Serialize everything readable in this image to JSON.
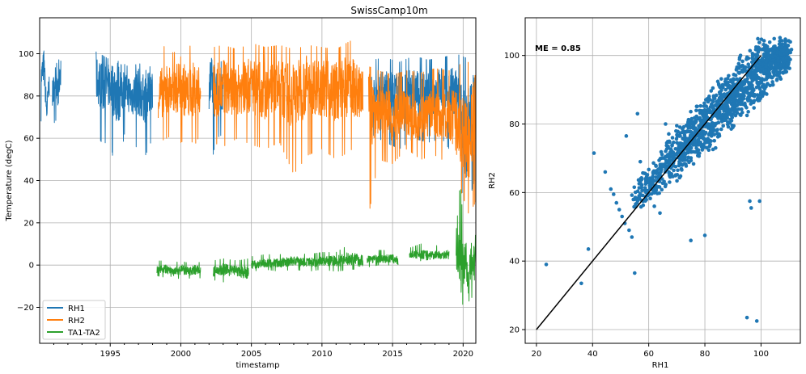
{
  "chart_data": [
    {
      "type": "line",
      "title": "SwissCamp10m",
      "xlabel": "timestamp",
      "ylabel": "Temperature (degC)",
      "xlim": [
        1990.0,
        2020.9
      ],
      "ylim": [
        -37,
        117
      ],
      "grid": true,
      "legend_position": "lower-left",
      "x_ticks": [
        1995,
        2000,
        2005,
        2010,
        2015,
        2020
      ],
      "x_tick_labels": [
        "1995",
        "2000",
        "2005",
        "2010",
        "2015",
        "2020"
      ],
      "y_ticks": [
        -20,
        0,
        20,
        40,
        60,
        80,
        100
      ],
      "y_tick_labels": [
        "−20",
        "0",
        "20",
        "40",
        "60",
        "80",
        "100"
      ],
      "series": [
        {
          "name": "RH1",
          "color": "#1f77b4",
          "segments": [
            {
              "x": [
                1990.1,
                1990.3,
                1990.5,
                1990.7
              ],
              "y": [
                88,
                95,
                72,
                87
              ],
              "low": [
                68,
                70,
                68,
                70
              ],
              "high": [
                95,
                98,
                92,
                96
              ]
            },
            {
              "x": [
                1990.9,
                1991.1,
                1991.3,
                1991.5
              ],
              "y": [
                80,
                88,
                82,
                90
              ],
              "low": [
                66,
                68,
                70,
                75
              ],
              "high": [
                90,
                95,
                96,
                100
              ]
            },
            {
              "x": [
                1994.0,
                1994.5,
                1995.0,
                1995.5,
                1996.0,
                1996.5,
                1997.0,
                1997.5,
                1998.0
              ],
              "y": [
                88,
                84,
                85,
                82,
                84,
                80,
                82,
                78,
                84
              ],
              "low": [
                62,
                57,
                60,
                35,
                62,
                58,
                55,
                52,
                60
              ],
              "high": [
                101,
                99,
                97,
                96,
                95,
                93,
                96,
                92,
                95
              ]
            },
            {
              "x": [
                2002.0,
                2002.5,
                2003.0
              ],
              "y": [
                86,
                84,
                80
              ],
              "low": [
                41,
                60,
                62
              ],
              "high": [
                95,
                97,
                96
              ]
            },
            {
              "x": [
                2013.5,
                2014.5,
                2015.5,
                2016.5,
                2017.5,
                2018.5,
                2019.5,
                2020.2,
                2020.8
              ],
              "y": [
                80,
                82,
                80,
                82,
                81,
                83,
                80,
                60,
                80
              ],
              "low": [
                62,
                58,
                55,
                60,
                58,
                60,
                50,
                24,
                40
              ],
              "high": [
                97,
                98,
                96,
                99,
                97,
                98,
                100,
                98,
                99
              ]
            }
          ]
        },
        {
          "name": "RH2",
          "color": "#ff7f0e",
          "segments": [
            {
              "x": [
                1998.4,
                1999.0,
                1999.5,
                2000.0,
                2000.5,
                2001.0,
                2001.4
              ],
              "y": [
                80,
                84,
                82,
                86,
                80,
                84,
                82
              ],
              "low": [
                58,
                60,
                62,
                58,
                60,
                57,
                62
              ],
              "high": [
                102,
                104,
                100,
                107,
                103,
                105,
                100
              ]
            },
            {
              "x": [
                2002.3,
                2003.0,
                2004.0,
                2005.0,
                2006.0,
                2007.0,
                2008.0,
                2009.0,
                2010.0,
                2011.0,
                2012.0,
                2012.9
              ],
              "y": [
                82,
                84,
                83,
                85,
                82,
                84,
                80,
                86,
                84,
                82,
                85,
                80
              ],
              "low": [
                58,
                56,
                60,
                57,
                55,
                58,
                43,
                52,
                55,
                50,
                54,
                60
              ],
              "high": [
                103,
                104,
                102,
                105,
                103,
                104,
                102,
                104,
                103,
                102,
                106,
                104
              ]
            },
            {
              "x": [
                2013.3,
                2014.0,
                2015.0,
                2016.0,
                2017.0,
                2018.0,
                2019.0,
                2019.8,
                2020.4,
                2020.9
              ],
              "y": [
                72,
                74,
                70,
                72,
                70,
                72,
                71,
                65,
                55,
                75
              ],
              "low": [
                23,
                50,
                48,
                55,
                50,
                52,
                48,
                36,
                24,
                30
              ],
              "high": [
                94,
                92,
                90,
                92,
                91,
                93,
                92,
                95,
                96,
                97
              ]
            }
          ]
        },
        {
          "name": "TA1-TA2",
          "color": "#2ca02c",
          "segments": [
            {
              "x": [
                1998.3,
                1999.0,
                1999.5,
                2000.0,
                2000.5,
                2001.0,
                2001.4
              ],
              "y": [
                -2,
                -2,
                -3,
                -2,
                -3,
                -2,
                -3
              ],
              "low": [
                -5,
                -6,
                -5,
                -7,
                -6,
                -7,
                -6
              ],
              "high": [
                2,
                2,
                1,
                2,
                1,
                2,
                1
              ]
            },
            {
              "x": [
                2002.3,
                2003.0,
                2004.0,
                2004.8
              ],
              "y": [
                -3,
                -2,
                -3,
                -4
              ],
              "low": [
                -7,
                -8,
                -7,
                -9
              ],
              "high": [
                2,
                3,
                2,
                3
              ]
            },
            {
              "x": [
                2005.0,
                2006.0,
                2007.0,
                2008.0,
                2009.0,
                2010.0,
                2011.0,
                2012.0,
                2012.9
              ],
              "y": [
                0,
                1,
                1,
                2,
                1,
                2,
                2,
                3,
                2
              ],
              "low": [
                -3,
                -2,
                -3,
                -2,
                -3,
                -2,
                -3,
                -2,
                -2
              ],
              "high": [
                4,
                5,
                5,
                6,
                5,
                6,
                6,
                10,
                8
              ]
            },
            {
              "x": [
                2013.2,
                2014.0,
                2015.0,
                2015.4
              ],
              "y": [
                3,
                3,
                3,
                2
              ],
              "low": [
                -1,
                0,
                0,
                0
              ],
              "high": [
                6,
                7,
                7,
                7
              ]
            },
            {
              "x": [
                2016.2,
                2017.0,
                2018.0,
                2019.0
              ],
              "y": [
                5,
                5,
                5,
                5
              ],
              "low": [
                3,
                2,
                3,
                3
              ],
              "high": [
                8,
                10,
                9,
                11
              ]
            },
            {
              "x": [
                2019.5,
                2019.8,
                2020.0,
                2020.2,
                2020.4,
                2020.6,
                2020.8,
                2020.9
              ],
              "y": [
                5,
                4,
                0,
                3,
                -10,
                5,
                0,
                4
              ],
              "low": [
                -5,
                -10,
                -20,
                -15,
                -25,
                -15,
                -20,
                -30
              ],
              "high": [
                15,
                40,
                20,
                10,
                15,
                10,
                12,
                15
              ]
            }
          ]
        }
      ]
    },
    {
      "type": "scatter",
      "title": "",
      "xlabel": "RH1",
      "ylabel": "RH2",
      "xlim": [
        16,
        114
      ],
      "ylim": [
        16,
        111
      ],
      "grid": true,
      "annotation": "ME = 0.85",
      "x_ticks": [
        20,
        40,
        60,
        80,
        100
      ],
      "x_tick_labels": [
        "20",
        "40",
        "60",
        "80",
        "100"
      ],
      "y_ticks": [
        20,
        40,
        60,
        80,
        100
      ],
      "y_tick_labels": [
        "20",
        "40",
        "60",
        "80",
        "100"
      ],
      "point_color": "#1f77b4",
      "line_color": "#000000",
      "line": {
        "x": [
          20,
          100
        ],
        "y": [
          20,
          100
        ]
      },
      "cloud_core": {
        "x": [
          54,
          70,
          85,
          100,
          110
        ],
        "low": [
          54,
          62,
          74,
          86,
          96
        ],
        "high": [
          62,
          80,
          94,
          106,
          106
        ]
      },
      "outliers": {
        "x": [
          23.5,
          36,
          38.5,
          40.5,
          44.5,
          46.5,
          47.5,
          48.5,
          49.5,
          50.5,
          51.5,
          52,
          53,
          54,
          55,
          56,
          57,
          58,
          59.5,
          62,
          64,
          66,
          70,
          75,
          80,
          95,
          96,
          96.5,
          98.5,
          99.5
        ],
        "y": [
          39,
          33.5,
          43.5,
          71.5,
          66,
          61,
          59.5,
          57,
          55,
          53,
          51,
          76.5,
          49,
          47,
          36.5,
          83,
          69,
          57.5,
          60.5,
          56,
          54,
          80,
          79.5,
          46,
          47.5,
          23.5,
          57.5,
          55.5,
          22.5,
          57.5
        ]
      }
    }
  ]
}
